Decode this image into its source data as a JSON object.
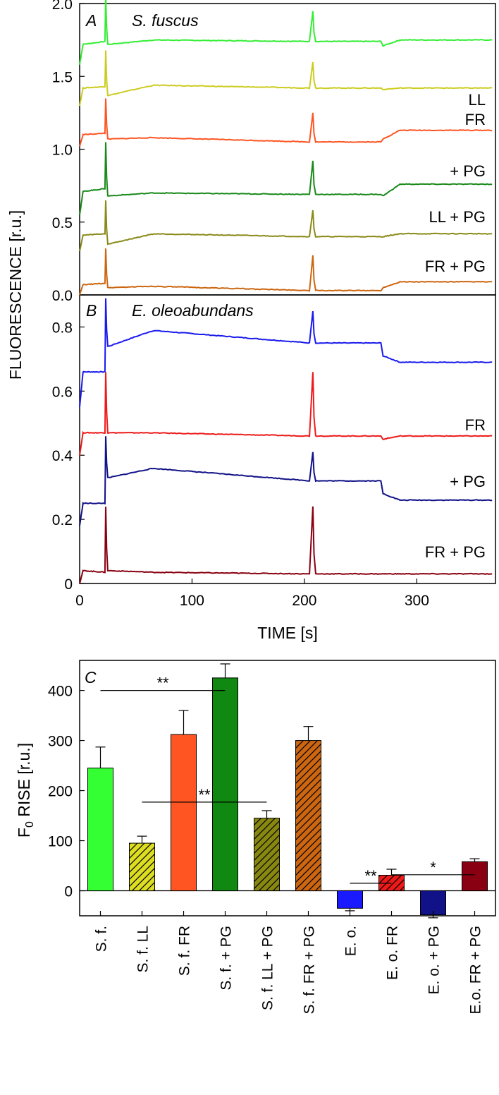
{
  "chart_data": [
    {
      "type": "line",
      "panel": "A",
      "title": "S. fuscus",
      "ylabel": "FLUORESCENCE [r.u.]",
      "xlim": [
        0,
        370
      ],
      "ylim": [
        0,
        2.0
      ],
      "yticks": [
        "0.0",
        "0.5",
        "1.0",
        "1.5",
        "2.0"
      ],
      "series": [
        {
          "name": "",
          "color": "#33ee33",
          "start": 1.58,
          "baseline": 1.72,
          "pre": 1.74,
          "spike1": 2.05,
          "dip1": 1.72,
          "plateau": 1.75,
          "spike2": 1.95,
          "mid": 1.74,
          "step3": 1.71,
          "end": 1.75
        },
        {
          "name": "LL",
          "color": "#cccc22",
          "start": 1.3,
          "baseline": 1.42,
          "pre": 1.43,
          "spike1": 1.68,
          "dip1": 1.37,
          "plateau": 1.44,
          "spike2": 1.6,
          "mid": 1.42,
          "step3": 1.41,
          "end": 1.42
        },
        {
          "name": "FR",
          "color": "#ff5522",
          "start": 1.02,
          "baseline": 1.1,
          "pre": 1.11,
          "spike1": 1.35,
          "dip1": 1.07,
          "plateau": 1.08,
          "spike2": 1.25,
          "mid": 1.05,
          "step3": 1.07,
          "end": 1.13
        },
        {
          "name": "+ PG",
          "color": "#1a8a1a",
          "start": 0.55,
          "baseline": 0.71,
          "pre": 0.73,
          "spike1": 1.05,
          "dip1": 0.68,
          "plateau": 0.7,
          "spike2": 0.92,
          "mid": 0.69,
          "step3": 0.68,
          "end": 0.76
        },
        {
          "name": "LL + PG",
          "color": "#8a8a1a",
          "start": 0.3,
          "baseline": 0.41,
          "pre": 0.42,
          "spike1": 0.65,
          "dip1": 0.35,
          "plateau": 0.42,
          "spike2": 0.58,
          "mid": 0.4,
          "step3": 0.4,
          "end": 0.42
        },
        {
          "name": "FR + PG",
          "color": "#cc6611",
          "start": 0.0,
          "baseline": 0.07,
          "pre": 0.08,
          "spike1": 0.32,
          "dip1": 0.05,
          "plateau": 0.06,
          "spike2": 0.27,
          "mid": 0.03,
          "step3": 0.05,
          "end": 0.09
        }
      ]
    },
    {
      "type": "line",
      "panel": "B",
      "title": "E. oleoabundans",
      "xlabel": "TIME [s]",
      "xlim": [
        0,
        370
      ],
      "ylim": [
        0,
        0.9
      ],
      "yticks": [
        "0",
        "0.2",
        "0.4",
        "0.6",
        "0.8"
      ],
      "xticks": [
        "0",
        "100",
        "200",
        "300"
      ],
      "series": [
        {
          "name": "",
          "color": "#1a1aee",
          "start": 0.55,
          "baseline": 0.66,
          "pre": 0.66,
          "spike1": 0.89,
          "dip1": 0.74,
          "plateau": 0.79,
          "spike2": 0.85,
          "mid": 0.75,
          "step3": 0.71,
          "end": 0.69
        },
        {
          "name": "FR",
          "color": "#ee1a1a",
          "start": 0.4,
          "baseline": 0.47,
          "pre": 0.47,
          "spike1": 0.66,
          "dip1": 0.47,
          "plateau": 0.47,
          "spike2": 0.66,
          "mid": 0.46,
          "step3": 0.45,
          "end": 0.46
        },
        {
          "name": "+ PG",
          "color": "#111188",
          "start": 0.18,
          "baseline": 0.25,
          "pre": 0.25,
          "spike1": 0.46,
          "dip1": 0.33,
          "plateau": 0.36,
          "spike2": 0.41,
          "mid": 0.32,
          "step3": 0.28,
          "end": 0.26
        },
        {
          "name": "FR + PG",
          "color": "#880011",
          "start": 0.0,
          "baseline": 0.04,
          "pre": 0.035,
          "spike1": 0.24,
          "dip1": 0.04,
          "plateau": 0.035,
          "spike2": 0.24,
          "mid": 0.03,
          "step3": 0.03,
          "end": 0.03
        }
      ]
    },
    {
      "type": "bar",
      "panel": "C",
      "ylabel_main": "F",
      "ylabel_sub": "0",
      "ylabel_rest": " RISE [r.u.]",
      "ylim": [
        -50,
        460
      ],
      "yticks": [
        "0",
        "100",
        "200",
        "300",
        "400"
      ],
      "categories": [
        "S. f.",
        "S. f. LL",
        "S. f. FR",
        "S. f. + PG",
        "S. f. LL + PG",
        "S. f. FR + PG",
        "E. o.",
        "E. o. FR",
        "E. o. + PG",
        "E.o. FR + PG"
      ],
      "values": [
        245,
        95,
        312,
        425,
        145,
        300,
        -35,
        31,
        -48,
        58
      ],
      "errors": [
        42,
        14,
        48,
        28,
        15,
        28,
        5,
        12,
        6,
        6
      ],
      "colors": [
        "#33ff33",
        "#dddd22",
        "#ff5522",
        "#118811",
        "#888811",
        "#cc6611",
        "#1a1aff",
        "#ee1a1a",
        "#111188",
        "#880011"
      ],
      "hatched": [
        false,
        true,
        false,
        false,
        true,
        true,
        false,
        true,
        false,
        false
      ],
      "significance": [
        {
          "from": 0,
          "to": 3,
          "level": 400,
          "label": "**"
        },
        {
          "from": 1,
          "to": 4,
          "level": 177,
          "label": "**"
        },
        {
          "from": 6,
          "to": 7,
          "level": 15,
          "label": "**"
        },
        {
          "from": 7,
          "to": 9,
          "level": 32,
          "label": "*"
        }
      ]
    }
  ]
}
